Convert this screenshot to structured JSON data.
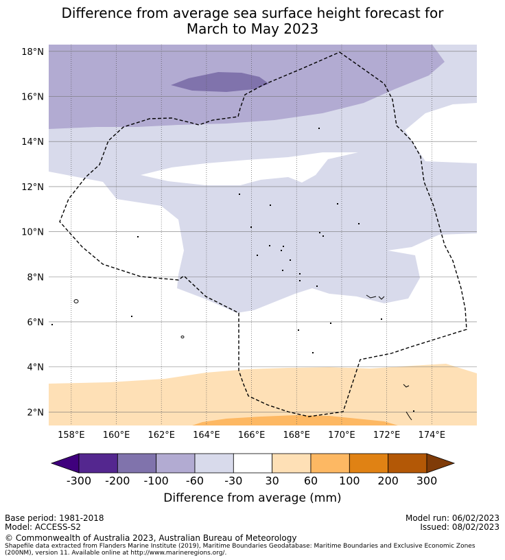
{
  "title_line1": "Difference from average sea surface height forecast for",
  "title_line2": "March to May 2023",
  "chart_data": {
    "type": "heatmap",
    "title": "Difference from average sea surface height forecast for March to May 2023",
    "xlabel": "",
    "ylabel": "",
    "xlim": [
      157,
      176
    ],
    "ylim": [
      1.4,
      18.3
    ],
    "x_ticks": [
      158,
      160,
      162,
      164,
      166,
      168,
      170,
      172,
      174
    ],
    "x_tick_labels": [
      "158°E",
      "160°E",
      "162°E",
      "164°E",
      "166°E",
      "168°E",
      "170°E",
      "172°E",
      "174°E"
    ],
    "y_ticks": [
      2,
      4,
      6,
      8,
      10,
      12,
      14,
      16,
      18
    ],
    "y_tick_labels": [
      "2°N",
      "4°N",
      "6°N",
      "8°N",
      "10°N",
      "12°N",
      "14°N",
      "16°N",
      "18°N"
    ],
    "colorbar": {
      "label": "Difference from average (mm)",
      "tick_labels": [
        "-300",
        "-200",
        "-100",
        "-60",
        "-30",
        "30",
        "60",
        "100",
        "200",
        "300"
      ],
      "colors": [
        "#3f007d",
        "#54278f",
        "#8073ac",
        "#b2abd2",
        "#d8daeb",
        "#ffffff",
        "#fee0b6",
        "#fdb863",
        "#e08214",
        "#b35806",
        "#7f3b08"
      ],
      "extend": "both"
    },
    "regions": [
      {
        "range": "-200 to -100 mm",
        "color": "#8073ac",
        "area": "small patch near 16.5°N, 163–166°E"
      },
      {
        "range": "-100 to -60 mm",
        "color": "#b2abd2",
        "area": "north, 14.5–18.3°N"
      },
      {
        "range": "-60 to -30 mm",
        "color": "#d8daeb",
        "area": "central band, roughly 6–15°N"
      },
      {
        "range": "-30 to 30 mm",
        "color": "#ffffff",
        "area": "west and near-neutral areas"
      },
      {
        "range": "30 to 60 mm",
        "color": "#fee0b6",
        "area": "south, below about 4°N"
      },
      {
        "range": "60 to 100 mm",
        "color": "#fdb863",
        "area": "southern edge near 1.5–2°N, 164–172°E"
      }
    ]
  },
  "footer": {
    "base_period": "Base period: 1981-2018",
    "model": "Model: ACCESS-S2",
    "model_run": "Model run: 06/02/2023",
    "issued": "Issued: 08/02/2023",
    "copyright": "© Commonwealth of Australia 2023, Australian Bureau of Meteorology",
    "shapefile_line1": "Shapefile data extracted from Flanders Marine Institute (2019), Maritime Boundaries Geodatabase: Maritime Boundaries and Exclusive Economic Zones",
    "shapefile_line2": "(200NM), version 11. Available online at http://www.marineregions.org/."
  }
}
